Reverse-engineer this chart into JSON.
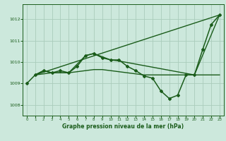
{
  "bg_color": "#cce8dc",
  "grid_color": "#aaccbb",
  "line_color": "#1a5c1a",
  "title": "Graphe pression niveau de la mer (hPa)",
  "ylim": [
    1007.5,
    1012.7
  ],
  "yticks": [
    1008,
    1009,
    1010,
    1011,
    1012
  ],
  "xlim": [
    -0.5,
    23.5
  ],
  "xticks": [
    0,
    1,
    2,
    3,
    4,
    5,
    6,
    7,
    8,
    9,
    10,
    11,
    12,
    13,
    14,
    15,
    16,
    17,
    18,
    19,
    20,
    21,
    22,
    23
  ],
  "series": [
    {
      "x": [
        0,
        1,
        2,
        3,
        4,
        5,
        6,
        7,
        8,
        9,
        10,
        11,
        12,
        13,
        14,
        15,
        16,
        17,
        18,
        19,
        20,
        21,
        22,
        23
      ],
      "y": [
        1009.0,
        1009.4,
        1009.6,
        1009.5,
        1009.6,
        1009.5,
        1009.8,
        1010.3,
        1010.4,
        1010.2,
        1010.1,
        1010.1,
        1009.8,
        1009.6,
        1009.35,
        1009.25,
        1008.65,
        1008.3,
        1008.45,
        1009.4,
        1009.4,
        1010.6,
        1011.75,
        1012.2
      ],
      "marker": "D",
      "markersize": 2.0,
      "linewidth": 1.1,
      "zorder": 3
    },
    {
      "x": [
        1,
        23
      ],
      "y": [
        1009.4,
        1012.2
      ],
      "marker": null,
      "markersize": 0,
      "linewidth": 1.0,
      "zorder": 2
    },
    {
      "x": [
        1,
        3,
        5,
        7,
        8,
        9,
        10,
        11,
        20,
        23
      ],
      "y": [
        1009.4,
        1009.5,
        1009.5,
        1010.3,
        1010.4,
        1010.25,
        1010.1,
        1010.05,
        1009.4,
        1012.2
      ],
      "marker": null,
      "markersize": 0,
      "linewidth": 1.0,
      "zorder": 2
    },
    {
      "x": [
        1,
        2,
        3,
        4,
        5,
        6,
        7,
        8,
        9,
        10,
        11,
        12,
        13,
        14,
        15,
        16,
        17,
        18,
        19,
        20,
        23
      ],
      "y": [
        1009.4,
        1009.6,
        1009.5,
        1009.5,
        1009.5,
        1009.55,
        1009.6,
        1009.65,
        1009.65,
        1009.6,
        1009.55,
        1009.5,
        1009.45,
        1009.4,
        1009.4,
        1009.4,
        1009.4,
        1009.4,
        1009.4,
        1009.4,
        1009.4
      ],
      "marker": null,
      "markersize": 0,
      "linewidth": 1.0,
      "zorder": 2
    }
  ]
}
